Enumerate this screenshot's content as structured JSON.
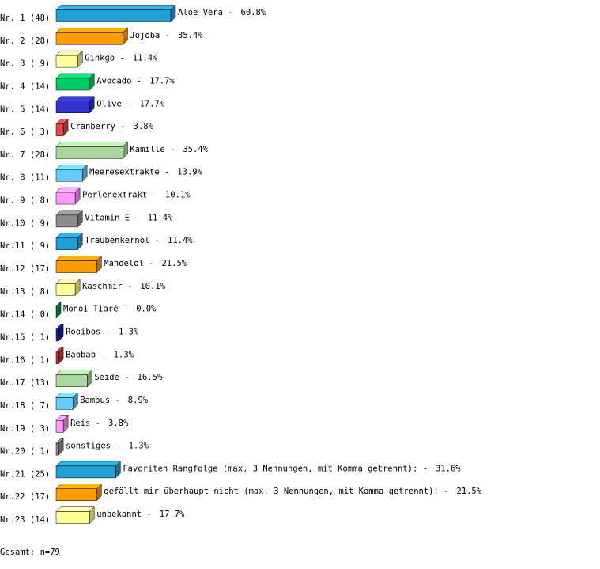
{
  "chart_data": {
    "type": "bar3d",
    "row_labels": [
      "Nr. 1 (48)",
      "Nr. 2 (28)",
      "Nr. 3 ( 9)",
      "Nr. 4 (14)",
      "Nr. 5 (14)",
      "Nr. 6 ( 3)",
      "Nr. 7 (28)",
      "Nr. 8 (11)",
      "Nr. 9 ( 8)",
      "Nr.10 ( 9)",
      "Nr.11 ( 9)",
      "Nr.12 (17)",
      "Nr.13 ( 8)",
      "Nr.14 ( 0)",
      "Nr.15 ( 1)",
      "Nr.16 ( 1)",
      "Nr.17 (13)",
      "Nr.18 ( 7)",
      "Nr.19 ( 3)",
      "Nr.20 ( 1)",
      "Nr.21 (25)",
      "Nr.22 (17)",
      "Nr.23 (14)"
    ],
    "categories": [
      "Aloe Vera -",
      "Jojoba -",
      "Ginkgo -",
      "Avocado -",
      "Olive -",
      "Cranberry -",
      "Kamille -",
      "Meeresextrakte -",
      "Perlenextrakt -",
      "Vitamin E -",
      "Traubenkernöl -",
      "Mandelöl -",
      "Kaschmir -",
      "Monoi Tiaré -",
      "Rooibos -",
      "Baobab -",
      "Seide -",
      "Bambus -",
      "Reis -",
      "sonstiges -",
      "Favoriten Rangfolge (max. 3 Nennungen, mit Komma getrennt): -",
      "gefällt mir überhaupt nicht (max. 3 Nennungen, mit Komma getrennt): -",
      "unbekannt -"
    ],
    "values": [
      60.8,
      35.4,
      11.4,
      17.7,
      17.7,
      3.8,
      35.4,
      13.9,
      10.1,
      11.4,
      11.4,
      21.5,
      10.1,
      0.0,
      1.3,
      1.3,
      16.5,
      8.9,
      3.8,
      1.3,
      31.6,
      21.5,
      17.7
    ],
    "value_labels": [
      "60.8%",
      "35.4%",
      "11.4%",
      "17.7%",
      "17.7%",
      "3.8%",
      "35.4%",
      "13.9%",
      "10.1%",
      "11.4%",
      "11.4%",
      "21.5%",
      "10.1%",
      "0.0%",
      "1.3%",
      "1.3%",
      "16.5%",
      "8.9%",
      "3.8%",
      "1.3%",
      "31.6%",
      "21.5%",
      "17.7%"
    ],
    "colors": [
      "#22a0d4",
      "#ff9c00",
      "#ffff99",
      "#00cc66",
      "#3333cc",
      "#e64848",
      "#a8d8a0",
      "#66ccff",
      "#ff99ff",
      "#8c8c8c",
      "#22a0d4",
      "#ff9c00",
      "#ffff99",
      "#00994c",
      "#1a1a99",
      "#cc3333",
      "#a8d8a0",
      "#66ccff",
      "#ff99ff",
      "#8c8c8c",
      "#22a0d4",
      "#ff9c00",
      "#ffff99"
    ],
    "note": "Gesamt: n=79"
  }
}
